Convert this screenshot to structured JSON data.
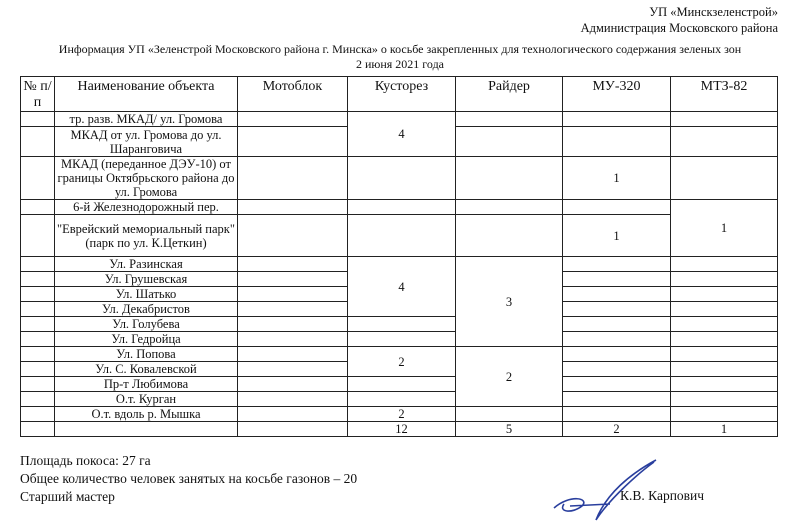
{
  "header": {
    "org_line1": "УП «Минскзеленстрой»",
    "org_line2": "Администрация Московского района",
    "title": "Информация УП «Зеленстрой Московского района г. Минска» о косьбе закрепленных для технологического содержания зеленых зон",
    "date": "2 июня 2021 года"
  },
  "table": {
    "columns": [
      "№ п/п",
      "Наименование объекта",
      "Мотоблок",
      "Кусторез",
      "Райдер",
      "МУ-320",
      "МТЗ-82"
    ],
    "rows": [
      "тр. разв. МКАД/ ул. Громова",
      "МКАД от ул. Громова до ул. Шаранговича",
      "МКАД (переданное ДЭУ-10) от границы Октябрьского района до ул. Громова",
      "6-й Железнодорожный пер.",
      "\"Еврейский мемориальный парк\" (парк по ул. К.Цеткин)",
      "Ул. Разинская",
      "Ул. Грушевская",
      "Ул. Шатько",
      "Ул. Декабристов",
      "Ул. Голубева",
      "Ул. Гедройца",
      "Ул. Попова",
      "Ул. С. Ковалевской",
      "Пр-т Любимова",
      "О.т. Курган",
      "О.т. вдоль р. Мышка"
    ],
    "values": {
      "kustorez_rows_1_2": "4",
      "mu320_row_3": "1",
      "mu320_row_5": "1",
      "mtz82_rows_4_5": "1",
      "kustorez_rows_6_9": "4",
      "raider_rows_6_11": "3",
      "kustorez_rows_12_13": "2",
      "raider_rows_12_15": "2",
      "kustorez_row_16": "2"
    },
    "totals": {
      "kustorez": "12",
      "raider": "5",
      "mu320": "2",
      "mtz82": "1"
    }
  },
  "footer": {
    "area": "Площадь покоса: 27 га",
    "people": "Общее количество человек занятых на косьбе газонов – 20",
    "position": "Старший мастер",
    "signer": "К.В. Карпович",
    "signature_color": "#2a3f9e"
  }
}
